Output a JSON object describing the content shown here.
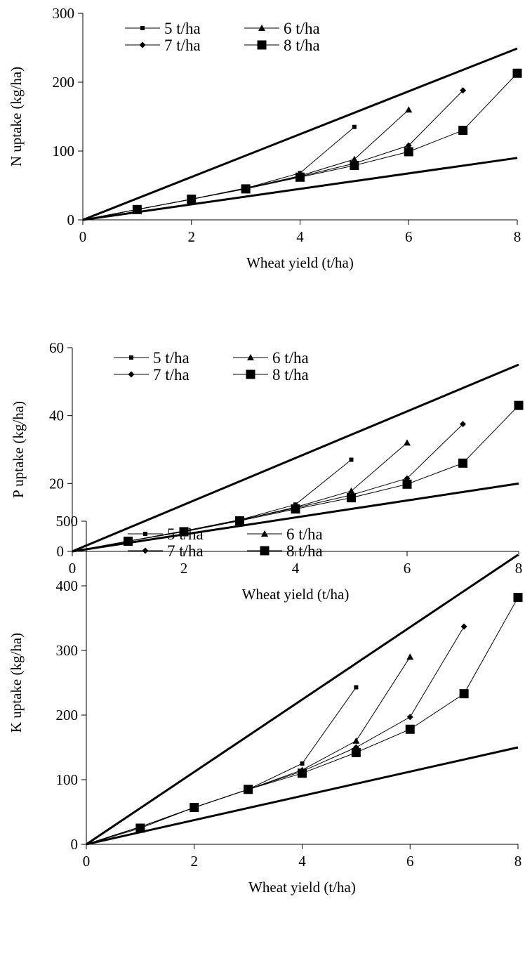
{
  "chart_data": [
    {
      "type": "line",
      "xlabel": "Wheat yield (t/ha)",
      "ylabel": "N uptake (kg/ha)",
      "xlim": [
        0,
        8
      ],
      "ylim": [
        0,
        300
      ],
      "xticks": [
        "0",
        "2",
        "4",
        "6",
        "8"
      ],
      "yticks": [
        "0",
        "100",
        "200",
        "300"
      ],
      "legend": [
        "5 t/ha",
        "6 t/ha",
        "7 t/ha",
        "8 t/ha"
      ],
      "series": [
        {
          "name": "5 t/ha",
          "marker": "small-square",
          "x": [
            0,
            1,
            2,
            3,
            4,
            5
          ],
          "y": [
            0,
            15,
            30,
            46,
            68,
            135
          ]
        },
        {
          "name": "6 t/ha",
          "marker": "triangle",
          "x": [
            0,
            1,
            2,
            3,
            4,
            5,
            6
          ],
          "y": [
            0,
            15,
            30,
            46,
            64,
            88,
            160
          ]
        },
        {
          "name": "7 t/ha",
          "marker": "diamond",
          "x": [
            0,
            1,
            2,
            3,
            4,
            5,
            6,
            7
          ],
          "y": [
            0,
            15,
            30,
            46,
            63,
            82,
            108,
            188
          ]
        },
        {
          "name": "8 t/ha",
          "marker": "large-square",
          "x": [
            0,
            1,
            2,
            3,
            4,
            5,
            6,
            7,
            8
          ],
          "y": [
            0,
            15,
            30,
            45,
            62,
            79,
            99,
            130,
            213
          ]
        }
      ],
      "envelope_lines": [
        {
          "x": [
            0,
            8
          ],
          "y": [
            0,
            249
          ]
        },
        {
          "x": [
            0,
            8
          ],
          "y": [
            0,
            90
          ]
        }
      ]
    },
    {
      "type": "line",
      "xlabel": "Wheat yield (t/ha)",
      "ylabel": "P uptake (kg/ha)",
      "xlim": [
        0,
        8
      ],
      "ylim": [
        0,
        60
      ],
      "xticks": [
        "0",
        "2",
        "4",
        "6",
        "8"
      ],
      "yticks": [
        "0",
        "20",
        "40",
        "60"
      ],
      "legend": [
        "5 t/ha",
        "6 t/ha",
        "7 t/ha",
        "8 t/ha"
      ],
      "series": [
        {
          "name": "5 t/ha",
          "marker": "small-square",
          "x": [
            0,
            1,
            2,
            3,
            4,
            5
          ],
          "y": [
            0,
            3.0,
            6.0,
            9.3,
            13.8,
            27
          ]
        },
        {
          "name": "6 t/ha",
          "marker": "triangle",
          "x": [
            0,
            1,
            2,
            3,
            4,
            5,
            6
          ],
          "y": [
            0,
            3.0,
            6.0,
            9.2,
            13.0,
            17.8,
            32
          ]
        },
        {
          "name": "7 t/ha",
          "marker": "diamond",
          "x": [
            0,
            1,
            2,
            3,
            4,
            5,
            6,
            7
          ],
          "y": [
            0,
            3.0,
            6.0,
            9.2,
            12.8,
            16.6,
            21.5,
            37.5
          ]
        },
        {
          "name": "8 t/ha",
          "marker": "large-square",
          "x": [
            0,
            1,
            2,
            3,
            4,
            5,
            6,
            7,
            8
          ],
          "y": [
            0,
            3.0,
            5.8,
            9.0,
            12.5,
            15.8,
            19.8,
            26,
            43
          ]
        }
      ],
      "envelope_lines": [
        {
          "x": [
            0,
            8
          ],
          "y": [
            0,
            55
          ]
        },
        {
          "x": [
            0,
            8
          ],
          "y": [
            0,
            20
          ]
        }
      ]
    },
    {
      "type": "line",
      "xlabel": "Wheat yield (t/ha)",
      "ylabel": "K uptake (kg/ha)",
      "xlim": [
        0,
        8
      ],
      "ylim": [
        0,
        500
      ],
      "xticks": [
        "0",
        "2",
        "4",
        "6",
        "8"
      ],
      "yticks": [
        "0",
        "100",
        "200",
        "300",
        "400",
        "500"
      ],
      "legend": [
        "5 t/ha",
        "6 t/ha",
        "7 t/ha",
        "8 t/ha"
      ],
      "series": [
        {
          "name": "5 t/ha",
          "marker": "small-square",
          "x": [
            0,
            1,
            2,
            3,
            4,
            5
          ],
          "y": [
            0,
            27,
            57,
            85,
            125,
            243
          ]
        },
        {
          "name": "6 t/ha",
          "marker": "triangle",
          "x": [
            0,
            1,
            2,
            3,
            4,
            5,
            6
          ],
          "y": [
            0,
            27,
            57,
            85,
            115,
            160,
            290
          ]
        },
        {
          "name": "7 t/ha",
          "marker": "diamond",
          "x": [
            0,
            1,
            2,
            3,
            4,
            5,
            6,
            7
          ],
          "y": [
            0,
            27,
            57,
            85,
            113,
            150,
            197,
            337
          ]
        },
        {
          "name": "8 t/ha",
          "marker": "large-square",
          "x": [
            0,
            1,
            2,
            3,
            4,
            5,
            6,
            7,
            8
          ],
          "y": [
            0,
            25,
            57,
            85,
            110,
            142,
            178,
            233,
            382
          ]
        }
      ],
      "envelope_lines": [
        {
          "x": [
            0,
            8
          ],
          "y": [
            0,
            448
          ]
        },
        {
          "x": [
            0,
            8
          ],
          "y": [
            0,
            150
          ]
        }
      ]
    }
  ]
}
